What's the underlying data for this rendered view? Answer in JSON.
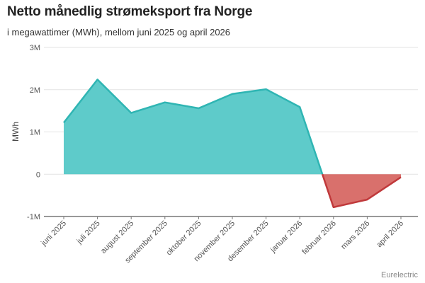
{
  "header": {
    "title": "Netto månedlig strømeksport fra Norge",
    "subtitle": "i megawattimer (MWh), mellom juni 2025 og april 2026"
  },
  "footer": {
    "source": "Eurelectric"
  },
  "colors": {
    "positive": "#5ecbca",
    "positive_line": "#2fb5b3",
    "negative": "#d9706c",
    "negative_line": "#c0393b",
    "grid": "#e3e3e3",
    "zero_line": "#333333"
  },
  "chart_data": {
    "type": "area",
    "ylabel": "MWh",
    "ylim": [
      -1000000,
      3000000
    ],
    "yticks": [
      {
        "value": 3000000,
        "label": "3M"
      },
      {
        "value": 2000000,
        "label": "2M"
      },
      {
        "value": 1000000,
        "label": "1M"
      },
      {
        "value": 0,
        "label": "0"
      },
      {
        "value": -1000000,
        "label": "-1M"
      }
    ],
    "categories": [
      "juni 2025",
      "juli 2025",
      "august 2025",
      "september 2025",
      "oktober 2025",
      "november 2025",
      "desember 2025",
      "januar 2026",
      "februar 2026",
      "mars 2026",
      "april 2026"
    ],
    "values": [
      1220000,
      2240000,
      1450000,
      1700000,
      1560000,
      1900000,
      2010000,
      1590000,
      -780000,
      -600000,
      -70000
    ],
    "grid": true
  }
}
